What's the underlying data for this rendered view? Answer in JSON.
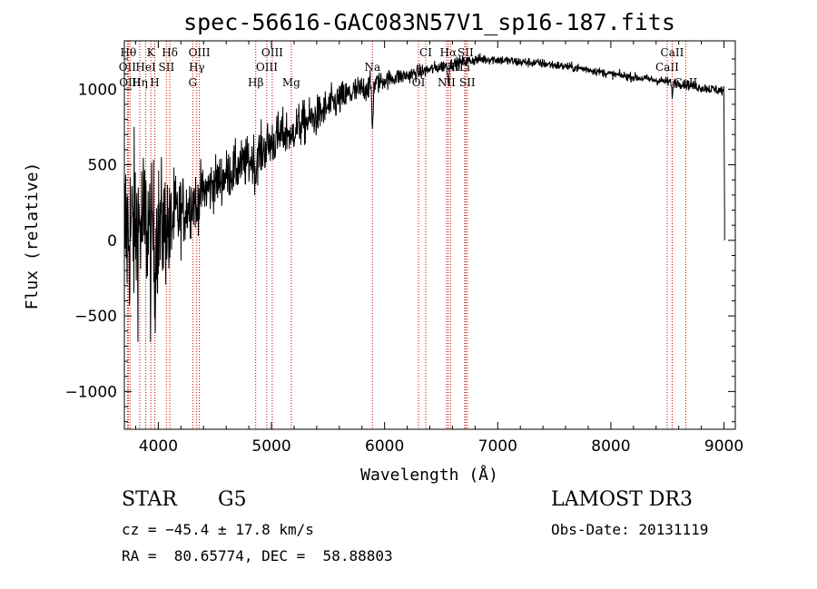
{
  "chart_data": {
    "type": "line",
    "title": "spec-56616-GAC083N57V1_sp16-187.fits",
    "xlabel": "Wavelength (Å)",
    "ylabel": "Flux (relative)",
    "xlim": [
      3700,
      9100
    ],
    "ylim": [
      -1250,
      1320
    ],
    "x_ticks": [
      4000,
      5000,
      6000,
      7000,
      8000,
      9000
    ],
    "x_tick_labels": [
      "4000",
      "5000",
      "6000",
      "7000",
      "8000",
      "9000"
    ],
    "y_ticks": [
      -1000,
      -500,
      0,
      500,
      1000
    ],
    "y_tick_labels": [
      "−1000",
      "−500",
      "0",
      "500",
      "1000"
    ],
    "continuum_points": [
      [
        3700,
        50
      ],
      [
        3800,
        80
      ],
      [
        3900,
        100
      ],
      [
        4000,
        60
      ],
      [
        4100,
        120
      ],
      [
        4200,
        180
      ],
      [
        4300,
        260
      ],
      [
        4400,
        320
      ],
      [
        4500,
        380
      ],
      [
        4600,
        430
      ],
      [
        4700,
        480
      ],
      [
        4800,
        520
      ],
      [
        4900,
        580
      ],
      [
        5000,
        650
      ],
      [
        5100,
        700
      ],
      [
        5200,
        740
      ],
      [
        5300,
        780
      ],
      [
        5400,
        820
      ],
      [
        5500,
        880
      ],
      [
        5600,
        930
      ],
      [
        5700,
        970
      ],
      [
        5800,
        1000
      ],
      [
        5900,
        1030
      ],
      [
        6000,
        1060
      ],
      [
        6100,
        1080
      ],
      [
        6200,
        1090
      ],
      [
        6300,
        1110
      ],
      [
        6400,
        1130
      ],
      [
        6500,
        1150
      ],
      [
        6600,
        1165
      ],
      [
        6700,
        1180
      ],
      [
        6800,
        1195
      ],
      [
        6900,
        1200
      ],
      [
        7000,
        1195
      ],
      [
        7200,
        1180
      ],
      [
        7400,
        1170
      ],
      [
        7600,
        1150
      ],
      [
        7800,
        1130
      ],
      [
        8000,
        1100
      ],
      [
        8200,
        1080
      ],
      [
        8400,
        1060
      ],
      [
        8600,
        1040
      ],
      [
        8800,
        1010
      ],
      [
        9000,
        990
      ]
    ],
    "noise_profile": [
      [
        3700,
        450
      ],
      [
        3800,
        420
      ],
      [
        3900,
        380
      ],
      [
        4000,
        330
      ],
      [
        4100,
        270
      ],
      [
        4200,
        180
      ],
      [
        4400,
        130
      ],
      [
        4600,
        120
      ],
      [
        4800,
        120
      ],
      [
        5000,
        120
      ],
      [
        5200,
        110
      ],
      [
        5500,
        90
      ],
      [
        5800,
        70
      ],
      [
        6000,
        45
      ],
      [
        6500,
        30
      ],
      [
        7000,
        25
      ],
      [
        8000,
        20
      ],
      [
        9000,
        25
      ]
    ],
    "lines": [
      {
        "label": "Hθ",
        "x": 3735,
        "row": 1
      },
      {
        "label": "OII",
        "x": 3727,
        "row": 2
      },
      {
        "label": "OIII",
        "x": 3750,
        "row": 3
      },
      {
        "label": "Hη",
        "x": 3836,
        "row": 3
      },
      {
        "label": "HeI",
        "x": 3889,
        "row": 2
      },
      {
        "label": "K",
        "x": 3934,
        "row": 1
      },
      {
        "label": "H",
        "x": 3969,
        "row": 3
      },
      {
        "label": "SII",
        "x": 4072,
        "row": 2
      },
      {
        "label": "Hδ",
        "x": 4102,
        "row": 1
      },
      {
        "label": "G",
        "x": 4304,
        "row": 3
      },
      {
        "label": "Hγ",
        "x": 4340,
        "row": 2
      },
      {
        "label": "OIII",
        "x": 4363,
        "row": 1
      },
      {
        "label": "Hβ",
        "x": 4861,
        "row": 3
      },
      {
        "label": "OIII",
        "x": 4959,
        "row": 2
      },
      {
        "label": "OIII",
        "x": 5007,
        "row": 1
      },
      {
        "label": "Mg",
        "x": 5175,
        "row": 3
      },
      {
        "label": "Na",
        "x": 5893,
        "row": 2
      },
      {
        "label": "OI",
        "x": 6300,
        "row": 3
      },
      {
        "label": "CI",
        "x": 6364,
        "row": 1
      },
      {
        "label": "NII",
        "x": 6548,
        "row": 3
      },
      {
        "label": "Hα",
        "x": 6563,
        "row": 1
      },
      {
        "label": "NII",
        "x": 6583,
        "row": 2
      },
      {
        "label": "Li",
        "x": 6708,
        "row": 2
      },
      {
        "label": "SII",
        "x": 6716,
        "row": 1
      },
      {
        "label": "SII",
        "x": 6731,
        "row": 3
      },
      {
        "label": "CaII",
        "x": 8498,
        "row": 2
      },
      {
        "label": "CaII",
        "x": 8542,
        "row": 1
      },
      {
        "label": "CaII",
        "x": 8662,
        "row": 3
      }
    ]
  },
  "info": {
    "object_class": "STAR",
    "subclass": "G5",
    "survey": "LAMOST DR3",
    "redshift": "cz = −45.4 ± 17.8 km/s",
    "obs_date": "Obs-Date: 20131119",
    "coords": "RA =  80.65774, DEC =  58.88803"
  },
  "colors": {
    "spectrum": "#000000",
    "lines": "#cc0000",
    "background": "#ffffff"
  }
}
